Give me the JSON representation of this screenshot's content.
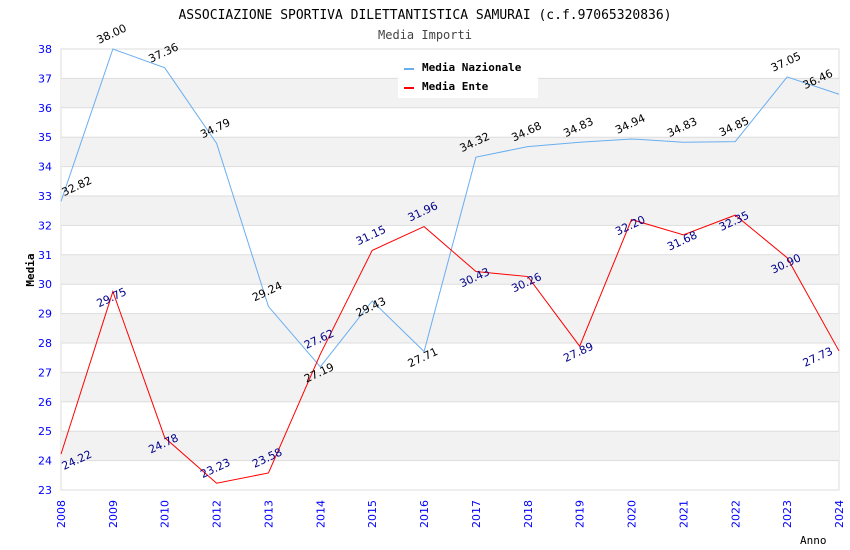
{
  "chart_data": {
    "type": "line",
    "title": "ASSOCIAZIONE SPORTIVA DILETTANTISTICA SAMURAI (c.f.97065320836)",
    "subtitle": "Media Importi",
    "xlabel": "Anno",
    "ylabel": "Media",
    "ylim": [
      23,
      38
    ],
    "yticks": [
      "23",
      "24",
      "25",
      "26",
      "27",
      "28",
      "29",
      "30",
      "31",
      "32",
      "33",
      "34",
      "35",
      "36",
      "37",
      "38"
    ],
    "categories": [
      "2008",
      "2009",
      "2010",
      "2012",
      "2013",
      "2014",
      "2015",
      "2016",
      "2017",
      "2018",
      "2019",
      "2020",
      "2021",
      "2022",
      "2023",
      "2024"
    ],
    "series": [
      {
        "name": "Media Nazionale",
        "color": "#6aaef0",
        "labelColor": "#000000",
        "values": [
          32.82,
          38.0,
          37.36,
          34.79,
          29.24,
          27.19,
          29.43,
          27.71,
          34.32,
          34.68,
          34.83,
          34.94,
          34.83,
          34.85,
          37.05,
          36.46
        ],
        "labels": [
          "32.82",
          "38.00",
          "37.36",
          "34.79",
          "29.24",
          "27.19",
          "29.43",
          "27.71",
          "34.32",
          "34.68",
          "34.83",
          "34.94",
          "34.83",
          "34.85",
          "37.05",
          "36.46"
        ]
      },
      {
        "name": "Media Ente",
        "color": "#ff0000",
        "labelColor": "#00008b",
        "values": [
          24.22,
          29.75,
          24.78,
          23.23,
          23.58,
          27.62,
          31.15,
          31.96,
          30.43,
          30.26,
          27.89,
          32.2,
          31.68,
          32.35,
          30.9,
          27.73
        ],
        "labels": [
          "24.22",
          "29.75",
          "24.78",
          "23.23",
          "23.58",
          "27.62",
          "31.15",
          "31.96",
          "30.43",
          "30.26",
          "27.89",
          "32.20",
          "31.68",
          "32.35",
          "30.90",
          "27.73"
        ]
      }
    ],
    "grid": true,
    "legend": "top-right"
  }
}
